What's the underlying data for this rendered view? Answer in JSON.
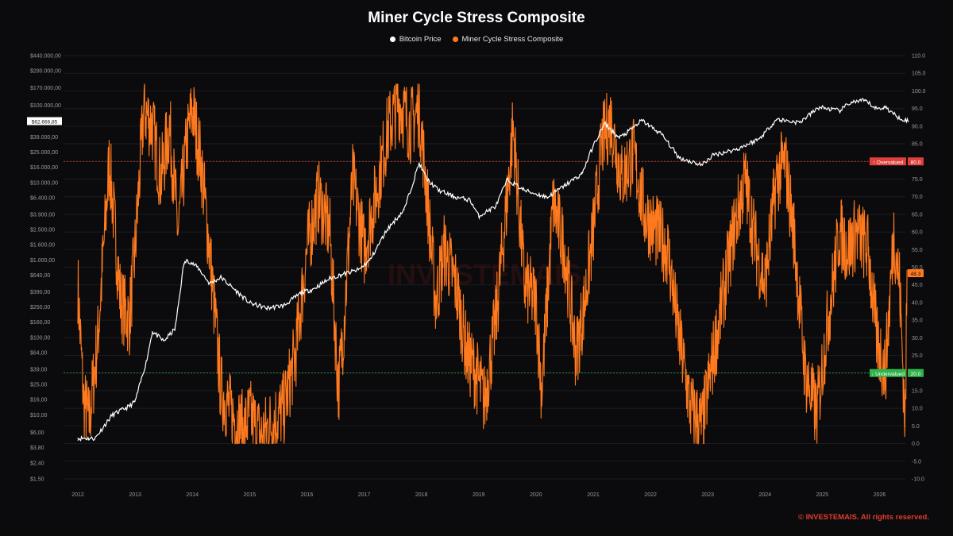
{
  "chart_data": {
    "type": "line",
    "title": "Miner Cycle Stress Composite",
    "legend_placement": "top-center",
    "grid": true,
    "series": [
      {
        "name": "Bitcoin Price",
        "color": "#ffffff",
        "axis": "left",
        "scale": "log",
        "x": [
          2012.0,
          2012.3,
          2012.6,
          2012.9,
          2013.0,
          2013.2,
          2013.3,
          2013.5,
          2013.7,
          2013.85,
          2013.92,
          2014.1,
          2014.3,
          2014.5,
          2014.8,
          2015.0,
          2015.3,
          2015.6,
          2015.9,
          2016.1,
          2016.4,
          2016.6,
          2016.9,
          2017.1,
          2017.4,
          2017.7,
          2017.96,
          2018.1,
          2018.3,
          2018.6,
          2018.85,
          2019.0,
          2019.3,
          2019.5,
          2019.8,
          2020.0,
          2020.2,
          2020.5,
          2020.8,
          2021.0,
          2021.2,
          2021.45,
          2021.6,
          2021.85,
          2022.2,
          2022.5,
          2022.9,
          2023.1,
          2023.5,
          2023.9,
          2024.2,
          2024.6,
          2024.95,
          2025.3,
          2025.5,
          2025.75,
          2025.95,
          2026.1,
          2026.3,
          2026.5
        ],
        "values": [
          5,
          5,
          10,
          13,
          15,
          50,
          120,
          90,
          130,
          900,
          1000,
          800,
          500,
          600,
          380,
          280,
          240,
          260,
          380,
          420,
          580,
          650,
          750,
          1000,
          2500,
          4500,
          18000,
          11000,
          8000,
          6500,
          6000,
          3700,
          5000,
          11000,
          8000,
          7200,
          6500,
          9200,
          13000,
          30000,
          58000,
          38000,
          45000,
          64000,
          42000,
          21000,
          17000,
          23000,
          27000,
          37000,
          66000,
          60000,
          95000,
          85000,
          110000,
          115000,
          90000,
          95000,
          72000,
          62666
        ]
      },
      {
        "name": "Miner Cycle Stress Composite",
        "color": "#ff7a1e",
        "axis": "right",
        "x": [
          2012.0,
          2012.1,
          2012.2,
          2012.35,
          2012.55,
          2012.75,
          2012.9,
          2013.0,
          2013.15,
          2013.3,
          2013.45,
          2013.6,
          2013.75,
          2013.9,
          2014.0,
          2014.15,
          2014.3,
          2014.5,
          2014.7,
          2014.9,
          2015.0,
          2015.2,
          2015.4,
          2015.6,
          2015.8,
          2016.0,
          2016.2,
          2016.4,
          2016.55,
          2016.65,
          2016.8,
          2017.0,
          2017.2,
          2017.4,
          2017.6,
          2017.8,
          2017.96,
          2018.1,
          2018.25,
          2018.4,
          2018.6,
          2018.8,
          2018.95,
          2019.1,
          2019.3,
          2019.5,
          2019.6,
          2019.8,
          2020.0,
          2020.1,
          2020.3,
          2020.5,
          2020.7,
          2020.85,
          2021.0,
          2021.15,
          2021.3,
          2021.5,
          2021.7,
          2021.9,
          2022.1,
          2022.3,
          2022.5,
          2022.7,
          2022.9,
          2023.1,
          2023.25,
          2023.45,
          2023.65,
          2023.85,
          2024.0,
          2024.2,
          2024.35,
          2024.5,
          2024.7,
          2024.9,
          2025.1,
          2025.3,
          2025.45,
          2025.6,
          2025.8,
          2025.95,
          2026.1,
          2026.25,
          2026.35,
          2026.45,
          2026.48
        ],
        "values": [
          45,
          12,
          6,
          30,
          80,
          40,
          35,
          55,
          95,
          90,
          75,
          90,
          60,
          85,
          95,
          80,
          55,
          15,
          8,
          4,
          8,
          2,
          6,
          10,
          25,
          55,
          70,
          60,
          15,
          35,
          75,
          55,
          70,
          88,
          97,
          90,
          95,
          70,
          40,
          55,
          45,
          25,
          20,
          12,
          35,
          70,
          90,
          45,
          40,
          15,
          68,
          55,
          25,
          40,
          60,
          85,
          92,
          75,
          82,
          65,
          60,
          55,
          30,
          10,
          5,
          25,
          40,
          60,
          75,
          55,
          45,
          75,
          80,
          60,
          20,
          8,
          35,
          60,
          55,
          60,
          55,
          30,
          20,
          60,
          45,
          5,
          48.3
        ]
      }
    ],
    "left_axis": {
      "scale": "log",
      "ticks": [
        "$1,50",
        "$2,40",
        "$3,80",
        "$6,00",
        "$10,00",
        "$16,00",
        "$25,00",
        "$39,00",
        "$64,00",
        "$100,00",
        "$160,00",
        "$250,00",
        "$390,00",
        "$640,00",
        "$1.000,00",
        "$1.600,00",
        "$2.500,00",
        "$3.900,00",
        "$6.400,00",
        "$10.000,00",
        "$16.000,00",
        "$25.000,00",
        "$39.000,00",
        "$100.000,00",
        "$170.000,00",
        "$280.000,00",
        "$440.000,00"
      ],
      "current_label": "$62.666,85",
      "current_value": 62666
    },
    "right_axis": {
      "ticks": [
        "110.0",
        "105.0",
        "100.0",
        "95.0",
        "90.0",
        "85.0",
        "80.0",
        "75.0",
        "70.0",
        "65.0",
        "60.0",
        "55.0",
        "50.0",
        "45.0",
        "40.0",
        "35.0",
        "30.0",
        "25.0",
        "20.0",
        "15.0",
        "10.0",
        "5.0",
        "0.0",
        "-5.0",
        "-10.0"
      ],
      "ylim": [
        -10,
        110
      ],
      "current_label": "48.3",
      "current_value": 48.3
    },
    "x_axis": {
      "ticks": [
        "2012",
        "2013",
        "2014",
        "2015",
        "2016",
        "2017",
        "2018",
        "2019",
        "2020",
        "2021",
        "2022",
        "2023",
        "2024",
        "2025",
        "2026"
      ],
      "xlim": [
        2012,
        2026.7
      ]
    },
    "thresholds": [
      {
        "label": "↑ Overvalued",
        "value_label": "80.0",
        "value": 80,
        "color": "#e0403a"
      },
      {
        "label": "↓ Undervalued",
        "value_label": "20.0",
        "value": 20,
        "color": "#2fb34a"
      }
    ]
  },
  "watermark": "INVESTEMAIS",
  "copyright": "© INVESTEMAIS. All rights reserved."
}
